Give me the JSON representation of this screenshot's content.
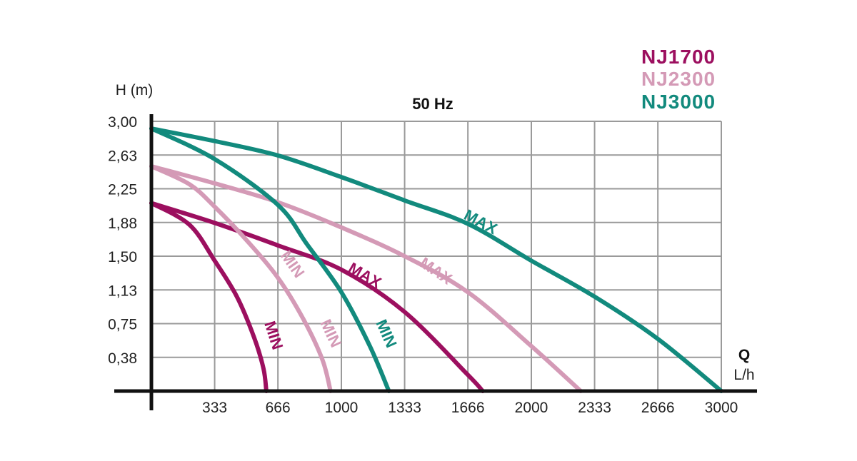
{
  "chart_data": {
    "type": "line",
    "title": "50 Hz",
    "ylabel": "H (m)",
    "xlabel": "Q",
    "xunit": "L/h",
    "xlim": [
      0,
      3000
    ],
    "ylim": [
      0,
      3.0
    ],
    "grid": true,
    "legend_position": "top-right",
    "x_ticks": [
      "333",
      "666",
      "1000",
      "1333",
      "1666",
      "2000",
      "2333",
      "2666",
      "3000"
    ],
    "x_tick_values": [
      333,
      666,
      1000,
      1333,
      1666,
      2000,
      2333,
      2666,
      3000
    ],
    "y_ticks": [
      "3,00",
      "2,63",
      "2,25",
      "1,88",
      "1,50",
      "1,13",
      "0,75",
      "0,38"
    ],
    "y_tick_values": [
      3.0,
      2.625,
      2.25,
      1.875,
      1.5,
      1.125,
      0.75,
      0.375
    ],
    "legend": [
      {
        "name": "NJ1700",
        "color": "#9c0f5f"
      },
      {
        "name": "NJ2300",
        "color": "#d49ab6"
      },
      {
        "name": "NJ3000",
        "color": "#128a7d"
      }
    ],
    "series": [
      {
        "model": "NJ1700",
        "setting": "MIN",
        "color": "#9c0f5f",
        "points": [
          [
            0,
            2.09
          ],
          [
            200,
            1.85
          ],
          [
            333,
            1.45
          ],
          [
            450,
            1.05
          ],
          [
            540,
            0.6
          ],
          [
            590,
            0.25
          ],
          [
            605,
            0
          ]
        ]
      },
      {
        "model": "NJ1700",
        "setting": "MAX",
        "color": "#9c0f5f",
        "points": [
          [
            0,
            2.09
          ],
          [
            333,
            1.87
          ],
          [
            666,
            1.62
          ],
          [
            1000,
            1.35
          ],
          [
            1333,
            0.88
          ],
          [
            1666,
            0.18
          ],
          [
            1744,
            0
          ]
        ]
      },
      {
        "model": "NJ2300",
        "setting": "MIN",
        "color": "#d49ab6",
        "points": [
          [
            0,
            2.5
          ],
          [
            200,
            2.3
          ],
          [
            333,
            2.05
          ],
          [
            500,
            1.68
          ],
          [
            666,
            1.26
          ],
          [
            800,
            0.8
          ],
          [
            900,
            0.35
          ],
          [
            943,
            0
          ]
        ]
      },
      {
        "model": "NJ2300",
        "setting": "MAX",
        "color": "#d49ab6",
        "points": [
          [
            0,
            2.5
          ],
          [
            333,
            2.31
          ],
          [
            666,
            2.1
          ],
          [
            1000,
            1.82
          ],
          [
            1333,
            1.5
          ],
          [
            1666,
            1.1
          ],
          [
            2000,
            0.5
          ],
          [
            2260,
            0
          ]
        ]
      },
      {
        "model": "NJ3000",
        "setting": "MIN",
        "color": "#128a7d",
        "points": [
          [
            0,
            2.92
          ],
          [
            333,
            2.58
          ],
          [
            666,
            2.07
          ],
          [
            820,
            1.63
          ],
          [
            1000,
            1.1
          ],
          [
            1150,
            0.5
          ],
          [
            1250,
            0
          ]
        ]
      },
      {
        "model": "NJ3000",
        "setting": "MAX",
        "color": "#128a7d",
        "points": [
          [
            0,
            2.92
          ],
          [
            333,
            2.78
          ],
          [
            666,
            2.62
          ],
          [
            1000,
            2.38
          ],
          [
            1333,
            2.12
          ],
          [
            1666,
            1.86
          ],
          [
            2000,
            1.45
          ],
          [
            2333,
            1.05
          ],
          [
            2666,
            0.58
          ],
          [
            3000,
            0
          ]
        ]
      }
    ],
    "annotations": [
      {
        "text": "MIN",
        "series": "NJ1700 MIN"
      },
      {
        "text": "MAX",
        "series": "NJ1700 MAX"
      },
      {
        "text": "MIN",
        "series": "NJ2300 MIN"
      },
      {
        "text": "MIN",
        "series": "NJ2300 MIN"
      },
      {
        "text": "MAX",
        "series": "NJ2300 MAX"
      },
      {
        "text": "MIN",
        "series": "NJ3000 MIN"
      },
      {
        "text": "MAX",
        "series": "NJ3000 MAX"
      }
    ]
  }
}
